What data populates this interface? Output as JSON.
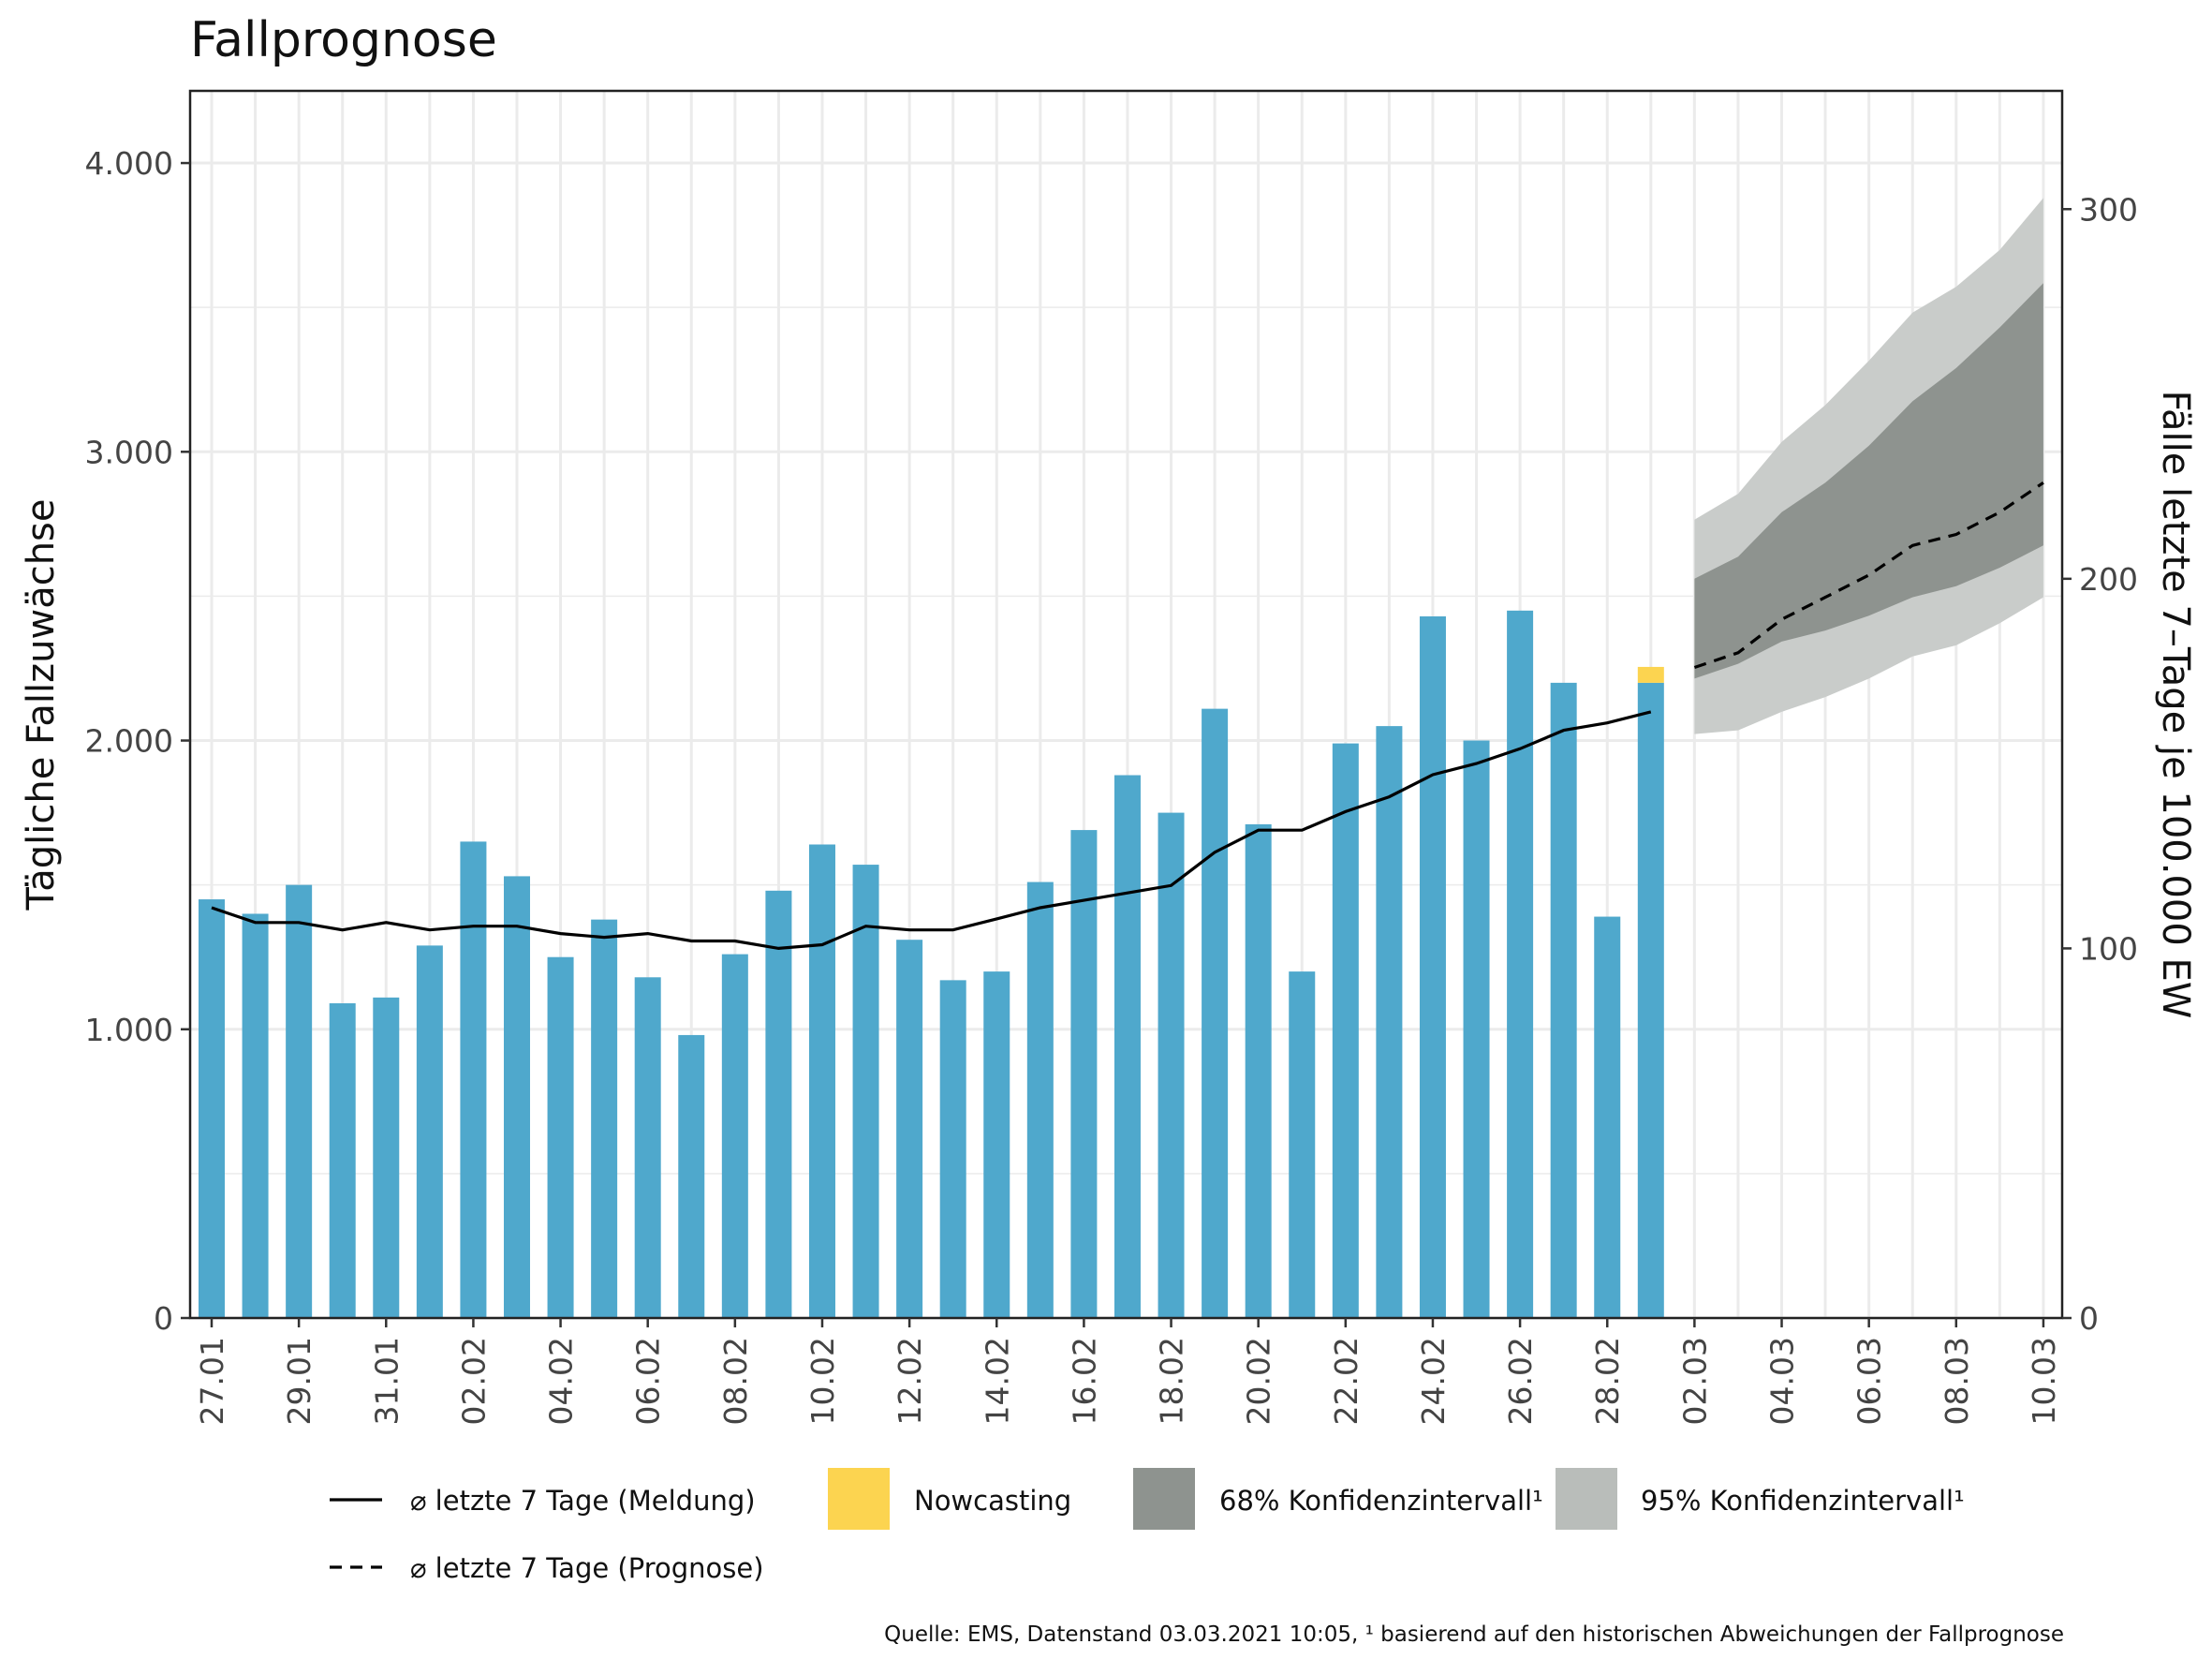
{
  "chart_data": {
    "type": "bar",
    "title": "Fallprognose",
    "ylabel": "Tägliche Fallzuwächse",
    "y2label": "Fälle letzte 7–Tage je 100.000 EW",
    "ylim": [
      0,
      4250
    ],
    "y2lim": [
      0,
      332
    ],
    "yticks": [
      "0",
      "1.000",
      "2.000",
      "3.000",
      "4.000"
    ],
    "yticks_values": [
      0,
      1000,
      2000,
      3000,
      4000
    ],
    "y2ticks": [
      "0",
      "100",
      "200",
      "300"
    ],
    "y2ticks_values": [
      0,
      100,
      200,
      300
    ],
    "x_ticks": [
      "27.01",
      "29.01",
      "31.01",
      "02.02",
      "04.02",
      "06.02",
      "08.02",
      "10.02",
      "12.02",
      "14.02",
      "16.02",
      "18.02",
      "20.02",
      "22.02",
      "24.02",
      "26.02",
      "28.02",
      "02.03",
      "04.03",
      "06.03",
      "08.03",
      "10.03"
    ],
    "categories": [
      "27.01",
      "28.01",
      "29.01",
      "30.01",
      "31.01",
      "01.02",
      "02.02",
      "03.02",
      "04.02",
      "05.02",
      "06.02",
      "07.02",
      "08.02",
      "09.02",
      "10.02",
      "11.02",
      "12.02",
      "13.02",
      "14.02",
      "15.02",
      "16.02",
      "17.02",
      "18.02",
      "19.02",
      "20.02",
      "21.02",
      "22.02",
      "23.02",
      "24.02",
      "25.02",
      "26.02",
      "27.02",
      "28.02",
      "01.03"
    ],
    "series": [
      {
        "name": "Tägliche Fallzuwächse",
        "color": "#4fa8cc",
        "values": [
          1450,
          1400,
          1500,
          1090,
          1110,
          1290,
          1650,
          1530,
          1250,
          1380,
          1180,
          980,
          1260,
          1480,
          1640,
          1570,
          1310,
          1170,
          1200,
          1510,
          1690,
          1880,
          1750,
          2110,
          1710,
          1200,
          1990,
          2050,
          2430,
          2000,
          2450,
          2200,
          1390,
          2200
        ]
      },
      {
        "name": "Nowcasting",
        "color": "#fcd450",
        "values": [
          0,
          0,
          0,
          0,
          0,
          0,
          0,
          0,
          0,
          0,
          0,
          0,
          0,
          0,
          0,
          0,
          0,
          0,
          0,
          0,
          0,
          0,
          0,
          0,
          0,
          0,
          0,
          0,
          0,
          0,
          0,
          0,
          0,
          55
        ]
      },
      {
        "name": "⌀ letzte 7 Tage (Meldung)",
        "axis": "right",
        "values": [
          111,
          107,
          107,
          105,
          107,
          105,
          106,
          106,
          104,
          103,
          104,
          102,
          102,
          100,
          101,
          106,
          105,
          105,
          108,
          111,
          113,
          115,
          117,
          126,
          132,
          132,
          137,
          141,
          147,
          150,
          154,
          159,
          161,
          164
        ]
      },
      {
        "name": "⌀ letzte 7 Tage (Prognose)",
        "axis": "right",
        "x": [
          "02.03",
          "03.03",
          "04.03",
          "05.03",
          "06.03",
          "07.03",
          "08.03",
          "09.03",
          "10.03"
        ],
        "values": [
          176,
          180,
          189,
          195,
          201,
          209,
          212,
          218,
          226
        ]
      }
    ],
    "ci68": {
      "x": [
        "02.03",
        "03.03",
        "04.03",
        "05.03",
        "06.03",
        "07.03",
        "08.03",
        "09.03",
        "10.03"
      ],
      "lower": [
        173,
        177,
        183,
        186,
        190,
        195,
        198,
        203,
        209
      ],
      "upper": [
        200,
        206,
        218,
        226,
        236,
        248,
        257,
        268,
        280
      ],
      "color": "#8e938f"
    },
    "ci95": {
      "x": [
        "02.03",
        "03.03",
        "04.03",
        "05.03",
        "06.03",
        "07.03",
        "08.03",
        "09.03",
        "10.03"
      ],
      "lower": [
        158,
        159,
        164,
        168,
        173,
        179,
        182,
        188,
        195
      ],
      "upper": [
        216,
        223,
        237,
        247,
        259,
        272,
        279,
        289,
        303
      ],
      "color": "#c9ccca"
    },
    "legend": [
      {
        "label": "⌀ letzte 7 Tage (Meldung)",
        "kind": "solid-line"
      },
      {
        "label": "Nowcasting",
        "kind": "box",
        "color": "#fcd450"
      },
      {
        "label": "68% Konfidenzintervall¹",
        "kind": "box",
        "color": "#8e938f"
      },
      {
        "label": "95% Konfidenzintervall¹",
        "kind": "box",
        "color": "#b9bdba"
      },
      {
        "label": "⌀ letzte 7 Tage (Prognose)",
        "kind": "dashed-line"
      }
    ],
    "legend_position": "bottom",
    "grid": true,
    "source": "Quelle: EMS, Datenstand 03.03.2021 10:05, ¹ basierend auf den historischen Abweichungen der Fallprognose"
  }
}
